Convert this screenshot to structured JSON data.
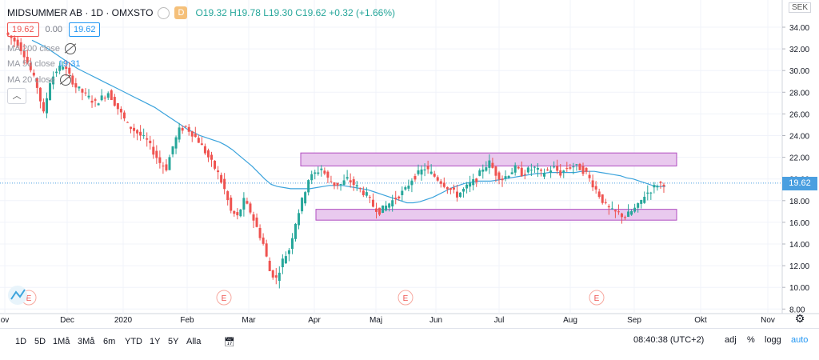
{
  "header": {
    "symbol": "MIDSUMMER AB · 1D · OMXSTO",
    "badge": "D",
    "ohlc": "O19.32 H19.78 L19.30 C19.62 +0.32 (+1.66%)",
    "bid": "19.62",
    "spread": "0.00",
    "ask": "19.62"
  },
  "indicators": [
    {
      "label": "MA 200 close",
      "value": ""
    },
    {
      "label": "MA 50 close",
      "value": "19.31"
    },
    {
      "label": "MA 20 close",
      "value": ""
    }
  ],
  "collapse_icon": "chevron-up-icon",
  "currency": "SEK",
  "last_price": "19.62",
  "colors": {
    "up": "#26a69a",
    "down": "#ef5350",
    "ma": "#3ba3dc",
    "rect_fill": "#e9c9ee",
    "rect_stroke": "#b04cc0"
  },
  "timeframes": [
    "1D",
    "5D",
    "1Må",
    "3Må",
    "6m",
    "YTD",
    "1Y",
    "5Y",
    "Alla"
  ],
  "footer": {
    "time": "08:40:38 (UTC+2)",
    "adj": "adj",
    "pct": "%",
    "log": "logg",
    "auto": "auto"
  },
  "event_markers": [
    "E",
    "E",
    "E",
    "E"
  ],
  "chart_data": {
    "type": "candlestick",
    "y_axis": {
      "min": 8,
      "max": 36,
      "ticks": [
        "34.00",
        "32.00",
        "30.00",
        "28.00",
        "26.00",
        "24.00",
        "22.00",
        "20.00",
        "18.00",
        "16.00",
        "14.00",
        "12.00",
        "10.00",
        "8.00"
      ]
    },
    "x_ticks": [
      "ov",
      "Dec",
      "2020",
      "Feb",
      "Mar",
      "Apr",
      "Maj",
      "Jun",
      "Jul",
      "Aug",
      "Sep",
      "Okt",
      "Nov"
    ],
    "zones": [
      {
        "low": 21.2,
        "high": 22.4
      },
      {
        "low": 16.2,
        "high": 17.2
      }
    ],
    "close_path": [
      33.5,
      33,
      32.5,
      31.5,
      30,
      28.5,
      26,
      29,
      30,
      30.5,
      29.5,
      28.5,
      28,
      27.5,
      27,
      27.5,
      28,
      27,
      26,
      25,
      24.5,
      24,
      23.5,
      22.5,
      21.5,
      21,
      23,
      24.5,
      24.8,
      24.2,
      23.5,
      22.5,
      21.5,
      20.5,
      19,
      17,
      16.5,
      18,
      17,
      15.5,
      14,
      11.5,
      10.8,
      12.5,
      13.5,
      16,
      18,
      20,
      20.5,
      21,
      20,
      19.5,
      19.5,
      20,
      19.5,
      19,
      18.5,
      17.5,
      17,
      17.5,
      18,
      18.5,
      19,
      20,
      20.5,
      21,
      20.5,
      20,
      19.5,
      19,
      18.5,
      19,
      19.5,
      20,
      21,
      21.5,
      20.5,
      20,
      20.5,
      21,
      20.5,
      20.8,
      21,
      20.5,
      20.8,
      21,
      20.5,
      21,
      21.2,
      21,
      20.5,
      19.5,
      18.5,
      17.5,
      17,
      16.8,
      16.5,
      17,
      17.5,
      18.5,
      19,
      19.5,
      19.62
    ],
    "ma_path": [
      32.8,
      32.5,
      32.2,
      31.8,
      31.4,
      31,
      30.6,
      30.2,
      29.9,
      29.6,
      29.3,
      29,
      28.7,
      28.4,
      28.1,
      27.8,
      27.5,
      27.2,
      26.9,
      26.6,
      26.2,
      25.8,
      25.4,
      25,
      24.6,
      24.3,
      24,
      23.8,
      23.6,
      23.4,
      23.1,
      22.7,
      22.2,
      21.7,
      21.2,
      20.6,
      20,
      19.5,
      19.3,
      19.2,
      19.1,
      19.1,
      19.1,
      19.1,
      19.2,
      19.3,
      19.4,
      19.4,
      19.4,
      19.3,
      19.2,
      19.1,
      19,
      18.8,
      18.6,
      18.4,
      18.2,
      18,
      17.8,
      17.8,
      17.9,
      18.1,
      18.3,
      18.6,
      18.9,
      19.2,
      19.4,
      19.6,
      19.7,
      19.8,
      19.8,
      19.8,
      19.9,
      20,
      20.1,
      20.2,
      20.3,
      20.4,
      20.5,
      20.5,
      20.6,
      20.6,
      20.6,
      20.6,
      20.6,
      20.7,
      20.7,
      20.7,
      20.6,
      20.5,
      20.4,
      20.3,
      20.1,
      20,
      19.8,
      19.6,
      19.4,
      19.3,
      19.31
    ]
  }
}
